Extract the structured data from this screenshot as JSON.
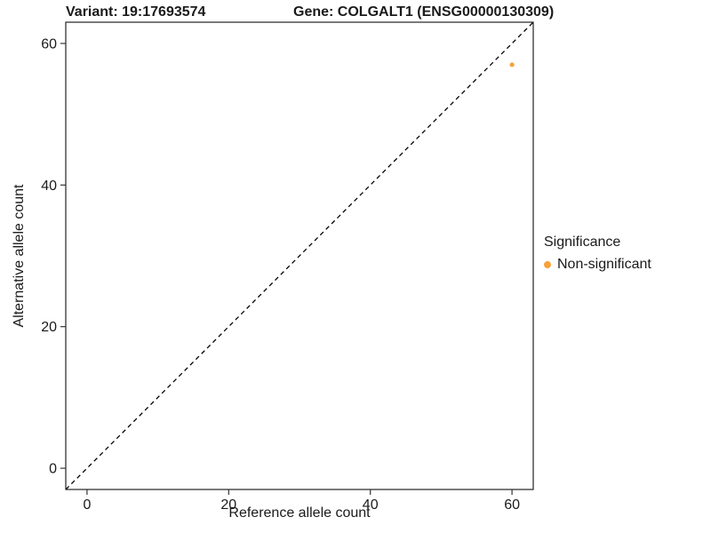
{
  "chart_data": {
    "type": "scatter",
    "title_left": "Variant: 19:17693574",
    "title_right": "Gene: COLGALT1 (ENSG00000130309)",
    "xlabel": "Reference allele count",
    "ylabel": "Alternative allele count",
    "xlim": [
      -3,
      63
    ],
    "ylim": [
      -3,
      63
    ],
    "xticks": [
      0,
      20,
      40,
      60
    ],
    "yticks": [
      0,
      20,
      40,
      60
    ],
    "grid": false,
    "panel_border_color": "#222222",
    "tick_color": "#333333",
    "tick_label_color": "#1a1a1a",
    "identity_line": {
      "style": "dashed",
      "color": "#000000",
      "from": [
        -3,
        -3
      ],
      "to": [
        63,
        63
      ]
    },
    "series": [
      {
        "name": "Non-significant",
        "color": "#F8A13C",
        "points": [
          {
            "x": 60,
            "y": 57
          }
        ]
      }
    ],
    "legend": {
      "title": "Significance",
      "position": "right"
    }
  }
}
